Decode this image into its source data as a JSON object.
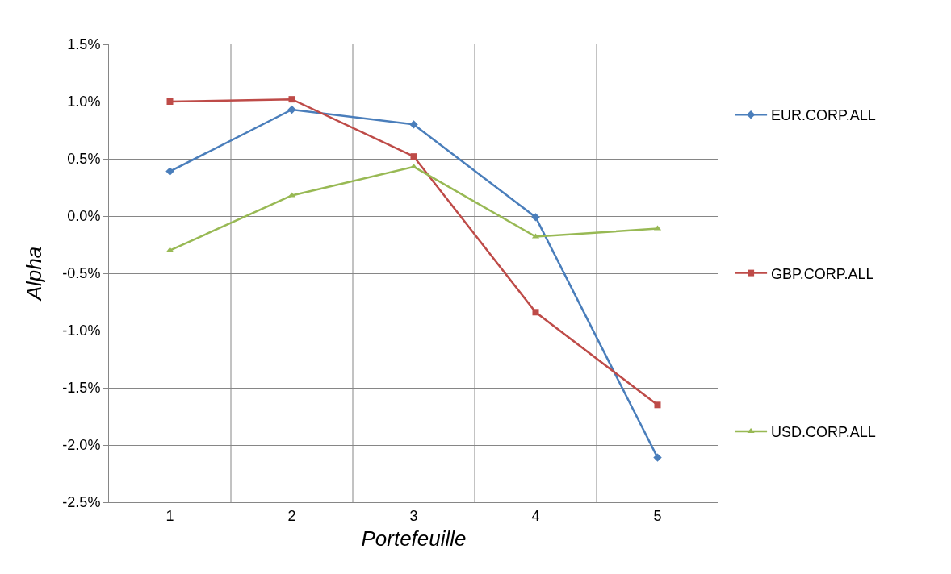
{
  "chart_data": {
    "type": "line",
    "xlabel": "Portefeuille",
    "ylabel": "Alpha",
    "categories": [
      "1",
      "2",
      "3",
      "4",
      "5"
    ],
    "series": [
      {
        "name": "EUR.CORP.ALL",
        "color": "#4a7ebb",
        "marker": "diamond",
        "values": [
          0.39,
          0.93,
          0.8,
          -0.01,
          -2.11
        ]
      },
      {
        "name": "GBP.CORP.ALL",
        "color": "#be4b48",
        "marker": "square",
        "values": [
          1.0,
          1.02,
          0.52,
          -0.84,
          -1.65
        ]
      },
      {
        "name": "USD.CORP.ALL",
        "color": "#98b954",
        "marker": "triangle",
        "values": [
          -0.3,
          0.18,
          0.43,
          -0.18,
          -0.11
        ]
      }
    ],
    "ylim": [
      -2.5,
      1.5
    ],
    "yticks": [
      {
        "value": -2.5,
        "label": "-2.5%"
      },
      {
        "value": -2.0,
        "label": "-2.0%"
      },
      {
        "value": -1.5,
        "label": "-1.5%"
      },
      {
        "value": -1.0,
        "label": "-1.0%"
      },
      {
        "value": -0.5,
        "label": "-0.5%"
      },
      {
        "value": 0.0,
        "label": "0.0%"
      },
      {
        "value": 0.5,
        "label": "0.5%"
      },
      {
        "value": 1.0,
        "label": "1.0%"
      },
      {
        "value": 1.5,
        "label": "1.5%"
      }
    ],
    "grid": true,
    "legend": "right",
    "line_style": "solid"
  }
}
